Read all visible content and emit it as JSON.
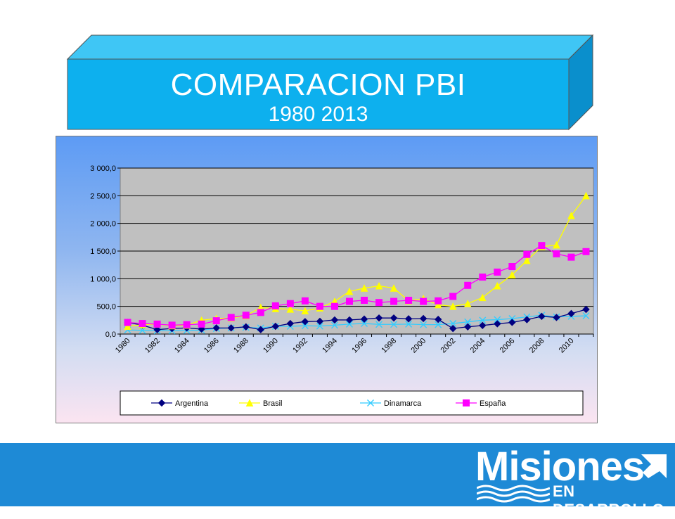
{
  "title": {
    "main": "COMPARACION PBI",
    "sub": "1980 2013"
  },
  "colors": {
    "title_face": "#0db0ee",
    "title_top": "#3fc6f5",
    "title_side": "#0a8fcc",
    "plot_bg": "#c0c0c0",
    "footer": "#1e8ad6"
  },
  "chart_data": {
    "type": "line",
    "title": "",
    "xlabel": "",
    "ylabel": "",
    "x": [
      1980,
      1981,
      1982,
      1983,
      1984,
      1985,
      1986,
      1987,
      1988,
      1989,
      1990,
      1991,
      1992,
      1993,
      1994,
      1995,
      1996,
      1997,
      1998,
      1999,
      2000,
      2001,
      2002,
      2003,
      2004,
      2005,
      2006,
      2007,
      2008,
      2009,
      2010,
      2011
    ],
    "x_tick_labels": [
      "1980",
      "1982",
      "1984",
      "1986",
      "1988",
      "1990",
      "1992",
      "1994",
      "1996",
      "1998",
      "2000",
      "2002",
      "2004",
      "2006",
      "2008",
      "2010"
    ],
    "ylim": [
      0,
      3000
    ],
    "y_ticks": [
      0,
      500,
      1000,
      1500,
      2000,
      2500,
      3000
    ],
    "y_tick_labels": [
      "0,0",
      "500,0",
      "1 000,0",
      "1 500,0",
      "2 000,0",
      "2 500,0",
      "3 000,0"
    ],
    "grid": true,
    "legend_position": "bottom",
    "series": [
      {
        "name": "Argentina",
        "color": "#000080",
        "marker": "diamond",
        "values": [
          210,
          160,
          80,
          100,
          110,
          90,
          110,
          110,
          130,
          80,
          140,
          190,
          225,
          230,
          255,
          255,
          270,
          290,
          290,
          275,
          280,
          265,
          100,
          130,
          155,
          185,
          210,
          260,
          320,
          300,
          370,
          445
        ]
      },
      {
        "name": "Brasil",
        "color": "#ffff00",
        "marker": "triangle",
        "values": [
          140,
          170,
          180,
          150,
          160,
          250,
          280,
          290,
          330,
          480,
          460,
          450,
          420,
          470,
          590,
          770,
          830,
          870,
          830,
          600,
          640,
          530,
          500,
          550,
          660,
          870,
          1070,
          1330,
          1580,
          1610,
          2140,
          2500
        ]
      },
      {
        "name": "Dinamarca",
        "color": "#33ccff",
        "marker": "x",
        "values": [
          75,
          65,
          60,
          60,
          65,
          70,
          100,
          110,
          120,
          110,
          140,
          140,
          150,
          145,
          160,
          180,
          190,
          175,
          175,
          180,
          170,
          170,
          190,
          220,
          250,
          260,
          280,
          310,
          340,
          310,
          320,
          330
        ]
      },
      {
        "name": "España",
        "color": "#ff00ff",
        "marker": "square",
        "values": [
          210,
          190,
          180,
          160,
          170,
          180,
          240,
          300,
          340,
          390,
          510,
          550,
          600,
          500,
          500,
          590,
          610,
          570,
          590,
          610,
          590,
          600,
          680,
          880,
          1030,
          1120,
          1220,
          1440,
          1600,
          1450,
          1390,
          1490
        ]
      }
    ]
  },
  "logo": {
    "word": "Misiones",
    "sub": "EN DESARROLLO"
  }
}
